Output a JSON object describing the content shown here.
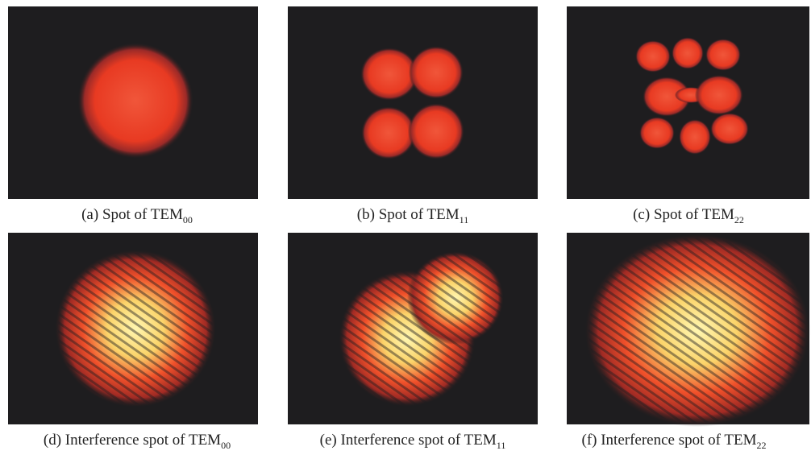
{
  "panels": [
    {
      "caption": {
        "text": "(a) Spot of TEM",
        "subscript": "00"
      }
    },
    {
      "caption": {
        "text": "(b) Spot of TEM",
        "subscript": "11"
      }
    },
    {
      "caption": {
        "text": "(c) Spot of TEM",
        "subscript": "22"
      }
    },
    {
      "caption": {
        "text": "(d) Interference spot of TEM",
        "subscript": "00"
      }
    },
    {
      "caption": {
        "text": "(e) Interference spot of TEM",
        "subscript": "11"
      }
    },
    {
      "caption": {
        "text": "(f) Interference spot of TEM",
        "subscript": "22"
      }
    }
  ]
}
